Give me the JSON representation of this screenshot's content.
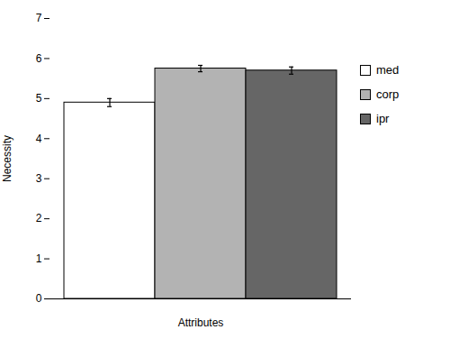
{
  "chart_data": {
    "type": "bar",
    "categories": [
      "med",
      "corp",
      "ipr"
    ],
    "values": [
      4.9,
      5.75,
      5.7
    ],
    "errors": [
      0.1,
      0.08,
      0.09
    ],
    "colors": [
      "#ffffff",
      "#b3b3b3",
      "#666666"
    ],
    "edgecolor": "#000000",
    "xlabel": "Attributes",
    "ylabel": "Necessity",
    "ylim": [
      0,
      7
    ],
    "yticks": [
      0,
      1,
      2,
      3,
      4,
      5,
      6,
      7
    ],
    "legend": "right",
    "tick_labels": "y"
  }
}
